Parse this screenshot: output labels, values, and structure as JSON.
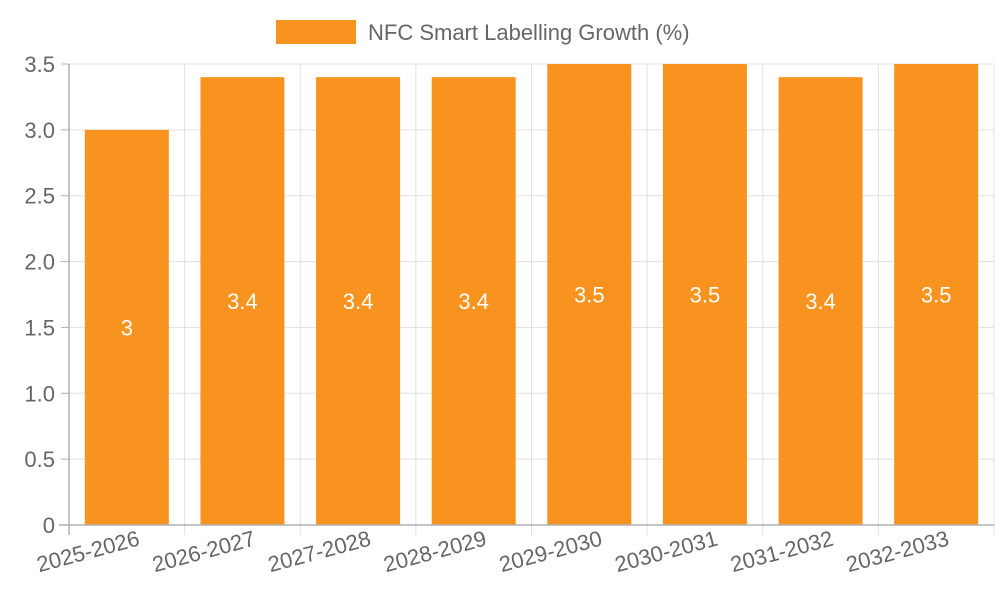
{
  "chart_data": {
    "type": "bar",
    "title": "",
    "xlabel": "",
    "ylabel": "",
    "categories": [
      "2025-2026",
      "2026-2027",
      "2027-2028",
      "2028-2029",
      "2029-2030",
      "2030-2031",
      "2031-2032",
      "2032-2033"
    ],
    "series": [
      {
        "name": "NFC Smart Labelling Growth (%)",
        "values": [
          3,
          3.4,
          3.4,
          3.4,
          3.5,
          3.5,
          3.4,
          3.5
        ],
        "data_labels": [
          "3",
          "3.4",
          "3.4",
          "3.4",
          "3.5",
          "3.5",
          "3.4",
          "3.5"
        ],
        "color": "#f7931e"
      }
    ],
    "ylim": [
      0,
      3.5
    ],
    "yticks": [
      "0",
      "0.5",
      "1.0",
      "1.5",
      "2.0",
      "2.5",
      "3.0",
      "3.5"
    ],
    "grid": true,
    "legend_position": "top"
  }
}
